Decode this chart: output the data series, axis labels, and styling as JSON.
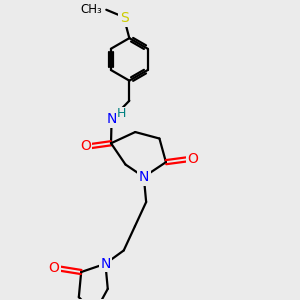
{
  "bg_color": "#ebebeb",
  "bond_color": "#000000",
  "atom_colors": {
    "N": "#0000ff",
    "O": "#ff0000",
    "S": "#cccc00",
    "H": "#008080",
    "C": "#000000"
  },
  "line_width": 1.6,
  "figsize": [
    3.0,
    3.0
  ],
  "dpi": 100
}
